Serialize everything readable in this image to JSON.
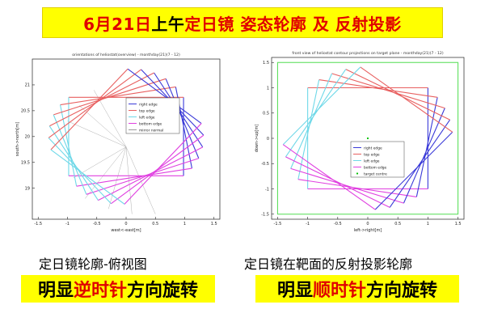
{
  "header": {
    "segments": [
      {
        "text": "6月21日",
        "color": "red"
      },
      {
        "text": "上午",
        "color": "black"
      },
      {
        "text": " 定日镜 姿态轮廓 及 反射投影",
        "color": "red"
      }
    ]
  },
  "chart_data": [
    {
      "type": "line",
      "title": "orientations of heliostat(overview) - monthday(21)(7 - 12)",
      "xlabel": "west<-east[m]",
      "ylabel": "south->north[m]",
      "xlim": [
        -1.6,
        1.6
      ],
      "ylim": [
        18.4,
        21.5
      ],
      "xticks": [
        -1.5,
        -1,
        -0.5,
        0,
        0.5,
        1,
        1.5
      ],
      "yticks": [
        19,
        19.5,
        20,
        20.5,
        21
      ],
      "center": [
        0,
        20
      ],
      "pivot": [
        0,
        19.8
      ],
      "legend": {
        "position": "upper-right",
        "entries": [
          "right edge",
          "top edge",
          "left edge",
          "bottom edge",
          "mirror normal"
        ]
      },
      "series": [
        {
          "name": "right edge",
          "color": "#3a3ad8"
        },
        {
          "name": "top edge",
          "color": "#e86060"
        },
        {
          "name": "left edge",
          "color": "#6fd8e8"
        },
        {
          "name": "bottom edge",
          "color": "#e040e0"
        },
        {
          "name": "mirror normal",
          "color": "#9a9a9a"
        }
      ],
      "rotation": "counterclockwise",
      "squares": [
        {
          "half_w": 0.98,
          "half_h": 0.76,
          "angle": 0
        },
        {
          "half_w": 1.0,
          "half_h": 0.8,
          "angle": 10
        },
        {
          "half_w": 1.02,
          "half_h": 0.82,
          "angle": 20
        },
        {
          "half_w": 1.03,
          "half_h": 0.83,
          "angle": 30
        },
        {
          "half_w": 1.03,
          "half_h": 0.83,
          "angle": 40
        },
        {
          "half_w": 1.02,
          "half_h": 0.82,
          "angle": 50
        }
      ],
      "normals": [
        [
          -0.55,
          20.9
        ],
        [
          -0.8,
          20.6
        ],
        [
          -1.0,
          20.3
        ],
        [
          -0.9,
          19.2
        ],
        [
          -0.7,
          18.8
        ],
        [
          -0.3,
          18.6
        ],
        [
          0.1,
          18.5
        ],
        [
          0.5,
          18.5
        ]
      ]
    },
    {
      "type": "line",
      "title": "front view of heliostat contour projections on target plane - monthday(21)(7 - 12)",
      "xlabel": "left->right[m]",
      "ylabel": "down->up[m]",
      "xlim": [
        -1.6,
        1.6
      ],
      "ylim": [
        -1.6,
        1.6
      ],
      "xticks": [
        -1.5,
        -1,
        -0.5,
        0,
        0.5,
        1,
        1.5
      ],
      "yticks": [
        -1.5,
        -1,
        -0.5,
        0,
        0.5,
        1,
        1.5
      ],
      "center": [
        0,
        0
      ],
      "target_box": 1.5,
      "target_centre": [
        0,
        0
      ],
      "legend": {
        "position": "lower-center",
        "entries": [
          "right edge",
          "top edge",
          "left edge",
          "bottom edge",
          "target centre"
        ]
      },
      "series": [
        {
          "name": "right edge",
          "color": "#3a3ad8"
        },
        {
          "name": "top edge",
          "color": "#e86060"
        },
        {
          "name": "left edge",
          "color": "#6fd8e8"
        },
        {
          "name": "bottom edge",
          "color": "#e040e0"
        },
        {
          "name": "target centre",
          "color": "#00c000"
        }
      ],
      "rotation": "clockwise",
      "squares": [
        {
          "half_w": 1.0,
          "half_h": 1.0,
          "angle": 0
        },
        {
          "half_w": 1.0,
          "half_h": 1.0,
          "angle": -10
        },
        {
          "half_w": 1.0,
          "half_h": 1.0,
          "angle": -20
        },
        {
          "half_w": 1.0,
          "half_h": 1.0,
          "angle": -30
        },
        {
          "half_w": 1.0,
          "half_h": 1.0,
          "angle": -40
        }
      ]
    }
  ],
  "captions": {
    "left": "定日镜轮廓-俯视图",
    "right": "定日镜在靶面的反射投影轮廓"
  },
  "highlights": {
    "left": [
      {
        "text": "明显",
        "color": "black"
      },
      {
        "text": "逆时针",
        "color": "red"
      },
      {
        "text": "方向旋转",
        "color": "black"
      }
    ],
    "right": [
      {
        "text": "明显",
        "color": "black"
      },
      {
        "text": "顺时针",
        "color": "red"
      },
      {
        "text": "方向旋转",
        "color": "black"
      }
    ]
  }
}
